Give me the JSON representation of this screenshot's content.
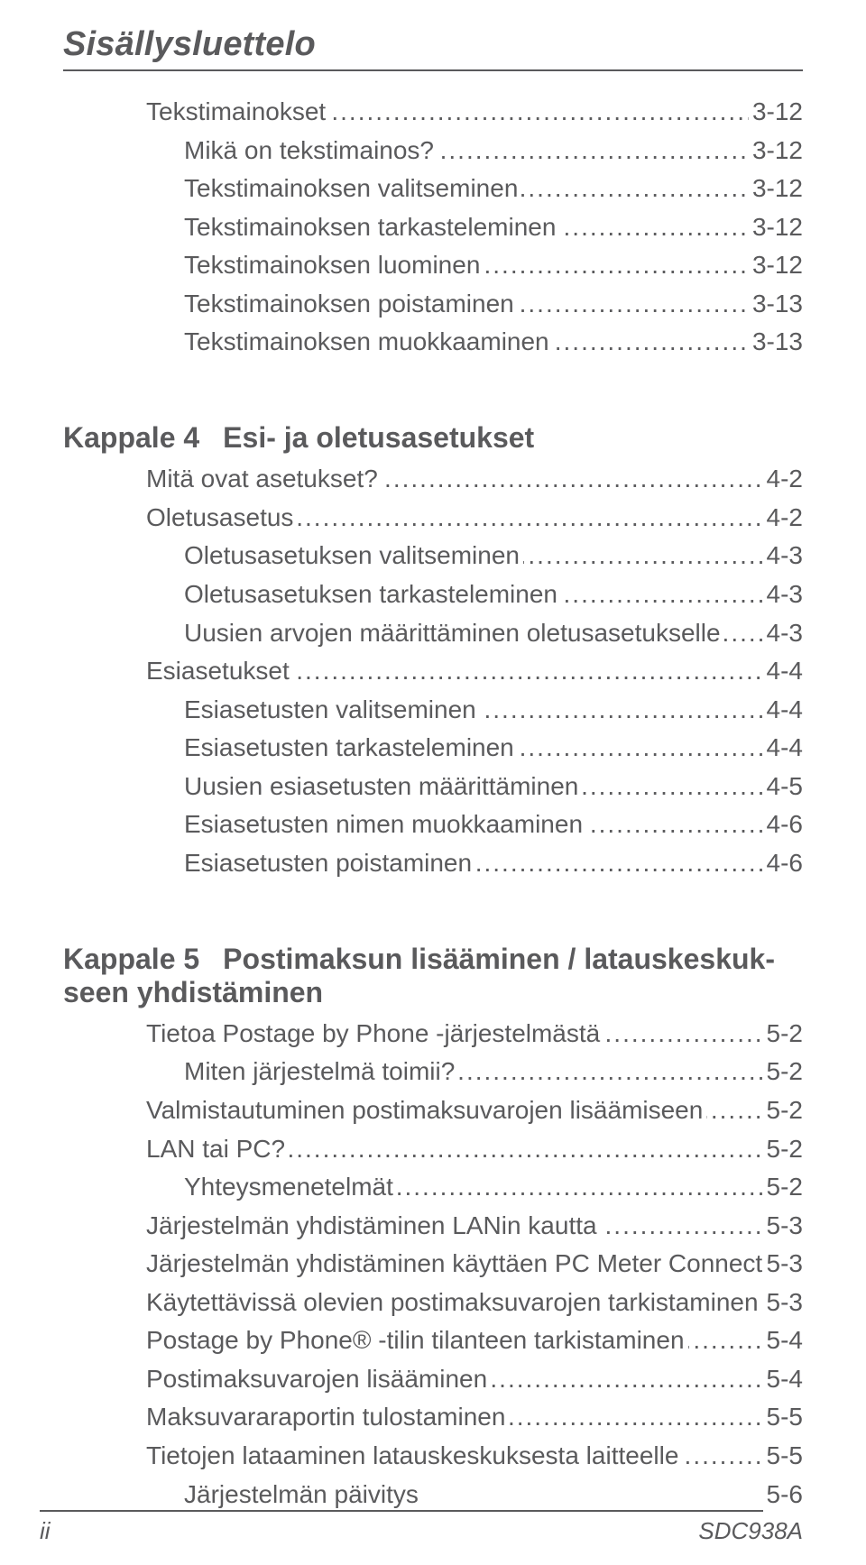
{
  "running_head": "Sisällysluettelo",
  "leader_dots": ".....................................................................................................................................................",
  "sections": [
    {
      "head": null,
      "entries": [
        {
          "level": 0,
          "label": "Tekstimainokset",
          "page": "3-12"
        },
        {
          "level": 1,
          "label": "Mikä on tekstimainos?",
          "page": "3-12"
        },
        {
          "level": 1,
          "label": "Tekstimainoksen valitseminen",
          "page": "3-12"
        },
        {
          "level": 1,
          "label": "Tekstimainoksen tarkasteleminen",
          "page": "3-12"
        },
        {
          "level": 1,
          "label": "Tekstimainoksen luominen",
          "page": "3-12"
        },
        {
          "level": 1,
          "label": "Tekstimainoksen poistaminen",
          "page": "3-13"
        },
        {
          "level": 1,
          "label": "Tekstimainoksen muokkaaminen",
          "page": "3-13"
        },
        {
          "level": 1,
          "blank": true
        }
      ]
    },
    {
      "head": {
        "number": "Kappale 4",
        "title": "Esi- ja oletusasetukset"
      },
      "entries": [
        {
          "level": 0,
          "label": "Mitä ovat asetukset?",
          "page": "4-2"
        },
        {
          "level": 0,
          "label": "Oletusasetus",
          "page": "4-2"
        },
        {
          "level": 1,
          "label": "Oletusasetuksen valitseminen",
          "page": "4-3"
        },
        {
          "level": 1,
          "label": "Oletusasetuksen tarkasteleminen",
          "page": "4-3"
        },
        {
          "level": 1,
          "label": "Uusien arvojen määrittäminen oletusasetukselle",
          "page": "4-3"
        },
        {
          "level": 0,
          "label": "Esiasetukset",
          "page": "4-4"
        },
        {
          "level": 1,
          "label": "Esiasetusten valitseminen",
          "page": "4-4"
        },
        {
          "level": 1,
          "label": "Esiasetusten tarkasteleminen",
          "page": "4-4"
        },
        {
          "level": 1,
          "label": "Uusien esiasetusten määrittäminen",
          "page": "4-5"
        },
        {
          "level": 1,
          "label": "Esiasetusten nimen muokkaaminen",
          "page": "4-6"
        },
        {
          "level": 1,
          "label": "Esiasetusten poistaminen",
          "page": "4-6"
        },
        {
          "level": 1,
          "blank": true
        }
      ]
    },
    {
      "head": {
        "number": "Kappale 5",
        "title": "Postimaksun lisääminen / latauskeskukseen yhdistäminen",
        "wrap_prefix": "Postimaksun lisääminen / latauskeskuk-",
        "wrap_suffix": "seen yhdistäminen"
      },
      "entries": [
        {
          "level": 0,
          "label": "Tietoa Postage by Phone -järjestelmästä",
          "page": "5-2"
        },
        {
          "level": 1,
          "label": "Miten järjestelmä toimii?",
          "page": "5-2"
        },
        {
          "level": 0,
          "label": "Valmistautuminen postimaksuvarojen lisäämiseen",
          "page": "5-2"
        },
        {
          "level": 0,
          "label": "LAN tai PC?",
          "page": "5-2"
        },
        {
          "level": 1,
          "label": "Yhteysmenetelmät",
          "page": "5-2"
        },
        {
          "level": 0,
          "label": "Järjestelmän yhdistäminen LANin kautta",
          "page": "5-3"
        },
        {
          "level": 0,
          "label": "Järjestelmän yhdistäminen käyttäen PC Meter Connectia",
          "page": "5-3"
        },
        {
          "level": 0,
          "label": "Käytettävissä olevien postimaksuvarojen tarkistaminen",
          "page": "5-3"
        },
        {
          "level": 0,
          "label": "Postage by Phone® -tilin tilanteen tarkistaminen",
          "page": "5-4"
        },
        {
          "level": 0,
          "label": "Postimaksuvarojen lisääminen",
          "page": "5-4"
        },
        {
          "level": 0,
          "label": "Maksuvararaportin tulostaminen",
          "page": "5-5"
        },
        {
          "level": 0,
          "label": "Tietojen lataaminen latauskeskuksesta laitteelle",
          "page": "5-5"
        },
        {
          "level": 1,
          "label": "Järjestelmän päivitys",
          "page": "5-6",
          "no_leader": true
        }
      ]
    }
  ],
  "footer": {
    "left": "ii",
    "right": "SDC938A"
  }
}
